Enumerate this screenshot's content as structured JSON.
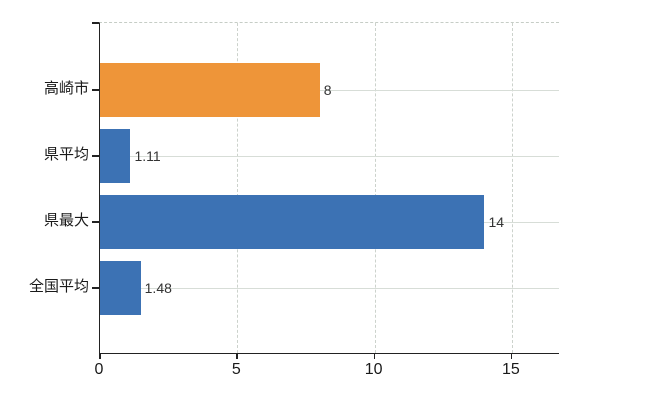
{
  "chart_data": {
    "type": "bar",
    "orientation": "horizontal",
    "categories": [
      "高崎市",
      "県平均",
      "県最大",
      "全国平均"
    ],
    "values": [
      8,
      1.11,
      14,
      1.48
    ],
    "value_labels": [
      "8",
      "1.11",
      "14",
      "1.48"
    ],
    "bar_colors": [
      "#ee9539",
      "#3c72b4",
      "#3c72b4",
      "#3c72b4"
    ],
    "xticks": [
      0,
      5,
      10,
      15
    ],
    "xtick_labels": [
      "0",
      "5",
      "10",
      "15"
    ],
    "xlim": [
      0,
      16.75
    ],
    "title": "",
    "xlabel": "",
    "ylabel": "",
    "legend": "none",
    "grid": {
      "vertical": "dashed",
      "horizontal": "solid-at-category-centers",
      "top_border": "dashed"
    },
    "colors": {
      "axis": "#222222",
      "grid_solid": "#d7ddd7",
      "grid_dashed": "#ccd2cc",
      "value_text": "#333333",
      "tick_text": "#1a1a1a",
      "background": "#ffffff"
    }
  }
}
